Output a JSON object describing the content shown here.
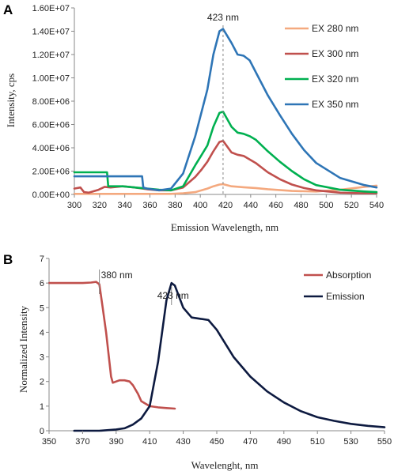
{
  "chart_data": [
    {
      "panel": "A",
      "type": "line",
      "xlabel": "Emission Wavelength, nm",
      "ylabel": "Intensity, cps",
      "xlim": [
        300,
        550
      ],
      "ylim": [
        0,
        16000000
      ],
      "xticks": [
        "300",
        "320",
        "340",
        "360",
        "380",
        "400",
        "420",
        "440",
        "460",
        "480",
        "500",
        "520",
        "540"
      ],
      "yticks": [
        "0.00E+00",
        "2.00E+06",
        "4.00E+06",
        "6.00E+06",
        "8.00E+06",
        "1.00E+07",
        "1.20E+07",
        "1.40E+07",
        "1.60E+07"
      ],
      "legend_position": "right",
      "annotation": {
        "text": "423 nm",
        "x": 423
      },
      "series": [
        {
          "name": "EX 280 nm",
          "color": "#f4a97f",
          "x": [
            300,
            320,
            340,
            360,
            380,
            390,
            400,
            410,
            415,
            420,
            423,
            430,
            440,
            450,
            460,
            480,
            500,
            520,
            540,
            550
          ],
          "y": [
            50000,
            50000,
            50000,
            50000,
            50000,
            100000,
            200000,
            500000,
            700000,
            850000,
            880000,
            700000,
            620000,
            550000,
            450000,
            300000,
            250000,
            400000,
            650000,
            750000
          ]
        },
        {
          "name": "EX 300 nm",
          "color": "#c0504d",
          "x": [
            300,
            305,
            308,
            312,
            320,
            325,
            330,
            340,
            350,
            360,
            370,
            380,
            390,
            400,
            405,
            410,
            415,
            420,
            423,
            430,
            435,
            440,
            450,
            460,
            470,
            480,
            490,
            500,
            520,
            540,
            550
          ],
          "y": [
            500000,
            600000,
            200000,
            150000,
            400000,
            650000,
            600000,
            700000,
            600000,
            450000,
            350000,
            350000,
            600000,
            1500000,
            2100000,
            2800000,
            3700000,
            4500000,
            4600000,
            3600000,
            3400000,
            3300000,
            2700000,
            1900000,
            1300000,
            850000,
            550000,
            350000,
            150000,
            100000,
            100000
          ]
        },
        {
          "name": "EX 320 nm",
          "color": "#00b050",
          "x": [
            300,
            327,
            328,
            335,
            340,
            350,
            360,
            370,
            380,
            390,
            400,
            410,
            415,
            420,
            423,
            430,
            435,
            440,
            445,
            450,
            460,
            470,
            480,
            490,
            500,
            520,
            540,
            550
          ],
          "y": [
            1900000,
            1900000,
            700000,
            700000,
            700000,
            600000,
            500000,
            400000,
            350000,
            700000,
            2500000,
            4200000,
            5800000,
            7000000,
            7100000,
            5800000,
            5300000,
            5200000,
            5000000,
            4700000,
            3700000,
            2800000,
            2000000,
            1300000,
            800000,
            400000,
            250000,
            200000
          ]
        },
        {
          "name": "EX 350 nm",
          "color": "#2e75b6",
          "x": [
            300,
            356,
            357,
            360,
            370,
            380,
            390,
            400,
            410,
            415,
            420,
            423,
            430,
            435,
            440,
            445,
            450,
            460,
            470,
            480,
            490,
            500,
            520,
            540,
            550
          ],
          "y": [
            1550000,
            1550000,
            600000,
            500000,
            350000,
            500000,
            1800000,
            5000000,
            9000000,
            12000000,
            14000000,
            14200000,
            13000000,
            12000000,
            11900000,
            11500000,
            10500000,
            8500000,
            6800000,
            5200000,
            3800000,
            2700000,
            1400000,
            800000,
            600000
          ]
        }
      ]
    },
    {
      "panel": "B",
      "type": "line",
      "xlabel": "Wavelenght, nm",
      "ylabel": "Normalized Intensity",
      "xlim": [
        350,
        550
      ],
      "ylim": [
        0,
        7
      ],
      "xticks": [
        "350",
        "370",
        "390",
        "410",
        "430",
        "450",
        "470",
        "490",
        "510",
        "530",
        "550"
      ],
      "yticks": [
        "0",
        "1",
        "2",
        "3",
        "4",
        "5",
        "6",
        "7"
      ],
      "legend_position": "right",
      "annotations": [
        {
          "text": "380 nm",
          "x": 380
        },
        {
          "text": "423 nm",
          "x": 423
        }
      ],
      "series": [
        {
          "name": "Absorption",
          "color": "#c0504d",
          "x": [
            350,
            370,
            375,
            378,
            380,
            382,
            384,
            386,
            387,
            388,
            390,
            392,
            395,
            398,
            400,
            403,
            405,
            410,
            415,
            420,
            425
          ],
          "y": [
            6.0,
            6.0,
            6.02,
            6.05,
            5.95,
            5.0,
            4.0,
            2.8,
            2.2,
            1.95,
            2.0,
            2.05,
            2.05,
            2.0,
            1.85,
            1.5,
            1.2,
            1.0,
            0.95,
            0.92,
            0.9
          ]
        },
        {
          "name": "Emission",
          "color": "#0d1a40",
          "x": [
            365,
            380,
            390,
            395,
            400,
            405,
            410,
            415,
            420,
            423,
            425,
            430,
            435,
            440,
            445,
            450,
            460,
            470,
            480,
            490,
            500,
            510,
            520,
            530,
            540,
            550
          ],
          "y": [
            0,
            0,
            0.05,
            0.1,
            0.25,
            0.5,
            1.0,
            2.8,
            5.3,
            6.0,
            5.9,
            5.0,
            4.6,
            4.55,
            4.5,
            4.1,
            3.0,
            2.2,
            1.6,
            1.15,
            0.8,
            0.55,
            0.4,
            0.28,
            0.2,
            0.14
          ]
        }
      ]
    }
  ]
}
